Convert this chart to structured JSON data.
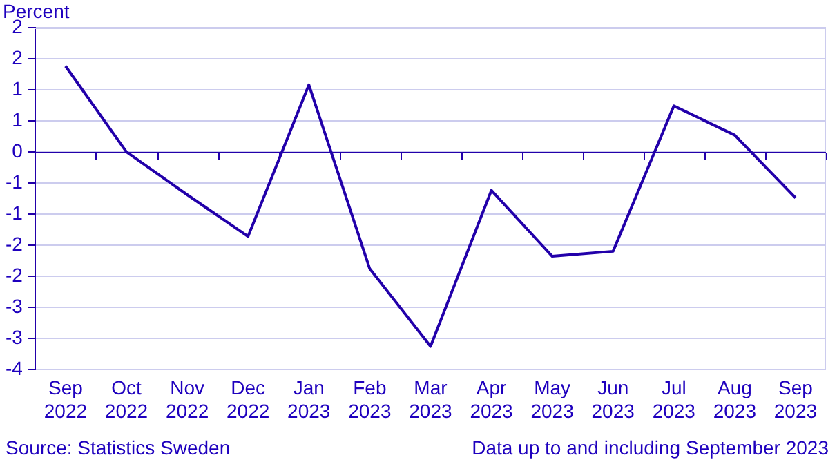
{
  "chart_data": {
    "type": "line",
    "ylabel": "Percent",
    "categories": [
      "Sep 2022",
      "Oct 2022",
      "Nov 2022",
      "Dec 2022",
      "Jan 2023",
      "Feb 2023",
      "Mar 2023",
      "Apr 2023",
      "May 2023",
      "Jun 2023",
      "Jul 2023",
      "Aug 2023",
      "Sep 2023"
    ],
    "series": [
      {
        "color": "#2200aa",
        "values": [
          1.38,
          0,
          -0.69,
          -1.36,
          1.08,
          -1.88,
          -3.13,
          -0.62,
          -1.68,
          -1.6,
          0.74,
          0.27,
          -0.74
        ]
      }
    ],
    "ylim": [
      -3.5,
      2
    ],
    "yticks": [
      {
        "value": -3.5,
        "label": "-4"
      },
      -3,
      {
        "value": -2.5,
        "label": "-3"
      },
      -2,
      {
        "value": -1.5,
        "label": "-2"
      },
      -1,
      {
        "value": -0.5,
        "label": "-1"
      },
      0,
      {
        "value": 0.5,
        "label": "1"
      },
      1,
      {
        "value": 1.5,
        "label": "2"
      },
      2
    ],
    "ref_lines": [
      {
        "axis": "y",
        "value": 0,
        "color": "#2200aa"
      }
    ],
    "grid": "y",
    "legend": false,
    "marker": "none",
    "line_style": "solid",
    "annotations": [
      "Source: Statistics Sweden",
      "Data up to and including September 2023"
    ]
  }
}
